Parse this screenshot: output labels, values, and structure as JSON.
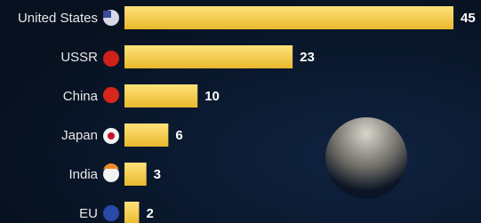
{
  "chart_data": {
    "type": "bar",
    "orientation": "horizontal",
    "categories": [
      "United States",
      "USSR",
      "China",
      "Japan",
      "India",
      "EU"
    ],
    "values": [
      45,
      23,
      10,
      6,
      3,
      2
    ],
    "color": "#f5cf4a"
  }
}
